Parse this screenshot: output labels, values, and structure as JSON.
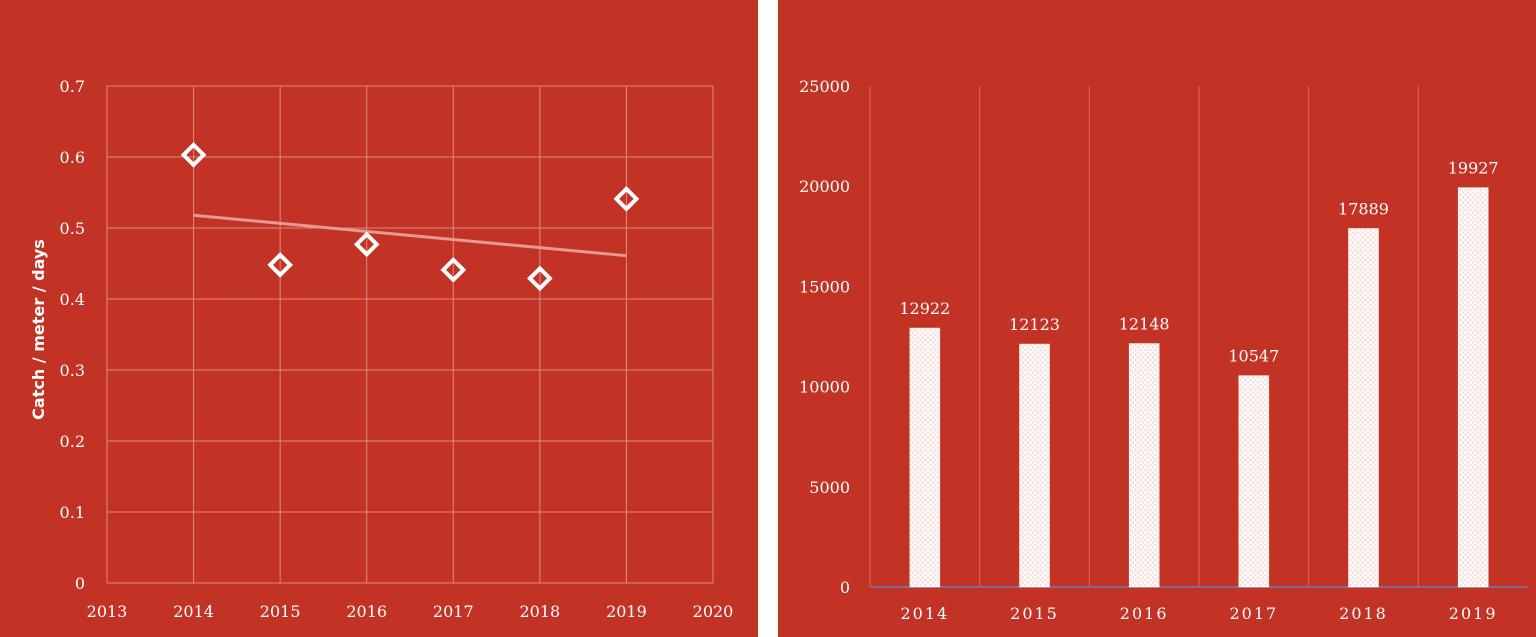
{
  "chart_data": [
    {
      "type": "scatter",
      "title": "",
      "xlabel": "",
      "ylabel": "Catch / meter / days",
      "xlim": [
        2013,
        2020
      ],
      "ylim": [
        0,
        0.7
      ],
      "x_ticks": [
        2013,
        2014,
        2015,
        2016,
        2017,
        2018,
        2019,
        2020
      ],
      "y_ticks": [
        0,
        0.1,
        0.2,
        0.3,
        0.4,
        0.5,
        0.6,
        0.7
      ],
      "grid": true,
      "series": [
        {
          "name": "Catch per meter per day",
          "marker": "diamond",
          "x": [
            2014,
            2015,
            2016,
            2017,
            2018,
            2019
          ],
          "y": [
            0.603,
            0.448,
            0.477,
            0.441,
            0.429,
            0.541
          ]
        }
      ],
      "trendline": {
        "type": "linear",
        "x": [
          2014,
          2019
        ],
        "y": [
          0.518,
          0.461
        ]
      },
      "colors": {
        "marker": "#ffffff",
        "trend": "#e59a92",
        "grid": "#de8a80"
      }
    },
    {
      "type": "bar",
      "title": "",
      "xlabel": "",
      "ylabel": "",
      "categories": [
        "2014",
        "2015",
        "2016",
        "2017",
        "2018",
        "2019"
      ],
      "values": [
        12922,
        12123,
        12148,
        10547,
        17889,
        19927
      ],
      "data_labels": [
        "12922",
        "12123",
        "12148",
        "10547",
        "17889",
        "19927"
      ],
      "ylim": [
        0,
        25000
      ],
      "y_ticks": [
        0,
        5000,
        10000,
        15000,
        20000,
        25000
      ],
      "grid": "vertical",
      "colors": {
        "bar_fill": "hatched-white",
        "axis": "#6b7fb0"
      }
    }
  ]
}
